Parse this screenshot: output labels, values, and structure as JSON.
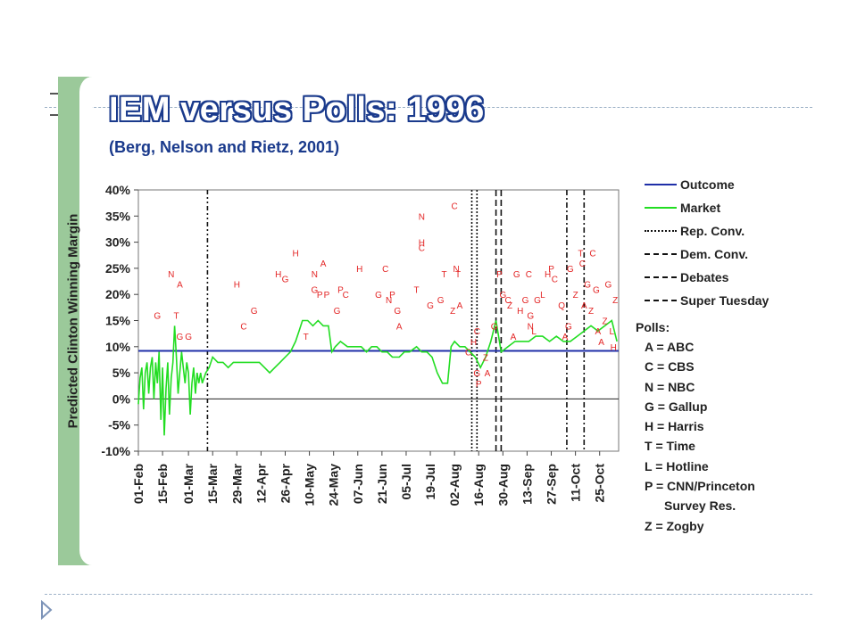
{
  "slide": {
    "title": "IEM versus Polls:  1996",
    "subtitle": "(Berg, Nelson and Rietz, 2001)",
    "ylabel": "Predicted Clinton Winning Margin"
  },
  "colors": {
    "outcome": "#1f2fa8",
    "market": "#22dd22",
    "polls": "#e32626",
    "title_outline": "#1a3a8c",
    "side_bar": "#9bc99a"
  },
  "chart_data": {
    "type": "line",
    "title": "IEM versus Polls:  1996",
    "subtitle": "(Berg, Nelson and Rietz, 2001)",
    "ylabel": "Predicted Clinton Winning Margin",
    "xlabel": "",
    "ylim": [
      -10,
      40
    ],
    "yticks": [
      -10,
      -5,
      0,
      5,
      10,
      15,
      20,
      25,
      30,
      35,
      40
    ],
    "ytick_labels": [
      "-10%",
      "-5%",
      "0%",
      "5%",
      "10%",
      "15%",
      "20%",
      "25%",
      "30%",
      "35%",
      "40%"
    ],
    "x_start": "1996-02-01",
    "x_end": "1996-11-05",
    "xticks": [
      "1996-02-01",
      "1996-02-15",
      "1996-03-01",
      "1996-03-15",
      "1996-03-29",
      "1996-04-12",
      "1996-04-26",
      "1996-05-10",
      "1996-05-24",
      "1996-06-07",
      "1996-06-21",
      "1996-07-05",
      "1996-07-19",
      "1996-08-02",
      "1996-08-16",
      "1996-08-30",
      "1996-09-13",
      "1996-09-27",
      "1996-10-11",
      "1996-10-25"
    ],
    "xtick_labels": [
      "01-Feb",
      "15-Feb",
      "01-Mar",
      "15-Mar",
      "29-Mar",
      "12-Apr",
      "26-Apr",
      "10-May",
      "24-May",
      "07-Jun",
      "21-Jun",
      "05-Jul",
      "19-Jul",
      "02-Aug",
      "16-Aug",
      "30-Aug",
      "13-Sep",
      "27-Sep",
      "11-Oct",
      "25-Oct"
    ],
    "legend": [
      {
        "label": "Outcome",
        "style": "solid-blue"
      },
      {
        "label": "Market",
        "style": "solid-green"
      },
      {
        "label": "Rep. Conv.",
        "style": "dotted"
      },
      {
        "label": "Dem. Conv.",
        "style": "long-dash"
      },
      {
        "label": "Debates",
        "style": "dash-dot"
      },
      {
        "label": "Super Tuesday",
        "style": "dash-dot-dot"
      }
    ],
    "legend_position": "right",
    "outcome": 9.2,
    "vlines": [
      {
        "name": "Super Tuesday",
        "date": "1996-03-12",
        "style": "dash-dot-dot"
      },
      {
        "name": "Rep. Conv.",
        "date": "1996-08-12",
        "style": "dotted"
      },
      {
        "name": "Rep. Conv.",
        "date": "1996-08-15",
        "style": "dotted"
      },
      {
        "name": "Dem. Conv.",
        "date": "1996-08-26",
        "style": "long-dash"
      },
      {
        "name": "Dem. Conv.",
        "date": "1996-08-29",
        "style": "long-dash"
      },
      {
        "name": "Debates",
        "date": "1996-10-06",
        "style": "dash-dot"
      },
      {
        "name": "Debates",
        "date": "1996-10-16",
        "style": "dash-dot"
      }
    ],
    "market": [
      [
        "1996-02-01",
        -1
      ],
      [
        "1996-02-02",
        4
      ],
      [
        "1996-02-03",
        6
      ],
      [
        "1996-02-04",
        -2
      ],
      [
        "1996-02-05",
        5
      ],
      [
        "1996-02-06",
        7
      ],
      [
        "1996-02-07",
        1
      ],
      [
        "1996-02-08",
        6
      ],
      [
        "1996-02-09",
        8
      ],
      [
        "1996-02-10",
        0
      ],
      [
        "1996-02-11",
        7
      ],
      [
        "1996-02-12",
        3
      ],
      [
        "1996-02-13",
        9
      ],
      [
        "1996-02-14",
        -4
      ],
      [
        "1996-02-15",
        6
      ],
      [
        "1996-02-16",
        -7
      ],
      [
        "1996-02-17",
        2
      ],
      [
        "1996-02-18",
        7
      ],
      [
        "1996-02-19",
        -3
      ],
      [
        "1996-02-20",
        4
      ],
      [
        "1996-02-21",
        7
      ],
      [
        "1996-02-22",
        14
      ],
      [
        "1996-02-23",
        8
      ],
      [
        "1996-02-24",
        1
      ],
      [
        "1996-02-25",
        5
      ],
      [
        "1996-02-26",
        9
      ],
      [
        "1996-02-27",
        6
      ],
      [
        "1996-02-28",
        3
      ],
      [
        "1996-02-29",
        7
      ],
      [
        "1996-03-01",
        5
      ],
      [
        "1996-03-02",
        -3
      ],
      [
        "1996-03-03",
        3
      ],
      [
        "1996-03-04",
        6
      ],
      [
        "1996-03-05",
        1
      ],
      [
        "1996-03-06",
        5
      ],
      [
        "1996-03-07",
        3
      ],
      [
        "1996-03-08",
        5
      ],
      [
        "1996-03-09",
        3
      ],
      [
        "1996-03-10",
        4
      ],
      [
        "1996-03-11",
        5
      ],
      [
        "1996-03-13",
        6
      ],
      [
        "1996-03-15",
        8
      ],
      [
        "1996-03-18",
        7
      ],
      [
        "1996-03-21",
        7
      ],
      [
        "1996-03-24",
        6
      ],
      [
        "1996-03-27",
        7
      ],
      [
        "1996-03-30",
        7
      ],
      [
        "1996-04-02",
        7
      ],
      [
        "1996-04-05",
        7
      ],
      [
        "1996-04-08",
        7
      ],
      [
        "1996-04-11",
        7
      ],
      [
        "1996-04-14",
        6
      ],
      [
        "1996-04-17",
        5
      ],
      [
        "1996-04-20",
        6
      ],
      [
        "1996-04-23",
        7
      ],
      [
        "1996-04-26",
        8
      ],
      [
        "1996-04-29",
        9
      ],
      [
        "1996-05-02",
        11
      ],
      [
        "1996-05-04",
        13
      ],
      [
        "1996-05-06",
        15
      ],
      [
        "1996-05-09",
        15
      ],
      [
        "1996-05-12",
        14
      ],
      [
        "1996-05-15",
        15
      ],
      [
        "1996-05-18",
        14
      ],
      [
        "1996-05-21",
        14
      ],
      [
        "1996-05-23",
        9
      ],
      [
        "1996-05-25",
        10
      ],
      [
        "1996-05-28",
        11
      ],
      [
        "1996-06-01",
        10
      ],
      [
        "1996-06-05",
        10
      ],
      [
        "1996-06-09",
        10
      ],
      [
        "1996-06-12",
        9
      ],
      [
        "1996-06-15",
        10
      ],
      [
        "1996-06-18",
        10
      ],
      [
        "1996-06-21",
        9
      ],
      [
        "1996-06-24",
        9
      ],
      [
        "1996-06-27",
        8
      ],
      [
        "1996-07-01",
        8
      ],
      [
        "1996-07-04",
        9
      ],
      [
        "1996-07-07",
        9
      ],
      [
        "1996-07-11",
        10
      ],
      [
        "1996-07-14",
        9
      ],
      [
        "1996-07-17",
        9
      ],
      [
        "1996-07-20",
        8
      ],
      [
        "1996-07-23",
        5
      ],
      [
        "1996-07-26",
        3
      ],
      [
        "1996-07-29",
        3
      ],
      [
        "1996-07-31",
        10
      ],
      [
        "1996-08-02",
        11
      ],
      [
        "1996-08-05",
        10
      ],
      [
        "1996-08-08",
        10
      ],
      [
        "1996-08-11",
        9
      ],
      [
        "1996-08-14",
        8
      ],
      [
        "1996-08-17",
        6
      ],
      [
        "1996-08-20",
        8
      ],
      [
        "1996-08-23",
        11
      ],
      [
        "1996-08-26",
        15
      ],
      [
        "1996-08-29",
        9
      ],
      [
        "1996-09-02",
        10
      ],
      [
        "1996-09-06",
        11
      ],
      [
        "1996-09-10",
        11
      ],
      [
        "1996-09-14",
        11
      ],
      [
        "1996-09-18",
        12
      ],
      [
        "1996-09-22",
        12
      ],
      [
        "1996-09-26",
        11
      ],
      [
        "1996-09-30",
        12
      ],
      [
        "1996-10-04",
        11
      ],
      [
        "1996-10-08",
        11
      ],
      [
        "1996-10-12",
        12
      ],
      [
        "1996-10-16",
        13
      ],
      [
        "1996-10-20",
        14
      ],
      [
        "1996-10-24",
        13
      ],
      [
        "1996-10-28",
        14
      ],
      [
        "1996-11-01",
        15
      ],
      [
        "1996-11-04",
        11
      ]
    ],
    "polls": [
      [
        "1996-02-12",
        16,
        "G"
      ],
      [
        "1996-02-20",
        24,
        "N"
      ],
      [
        "1996-02-23",
        16,
        "T"
      ],
      [
        "1996-02-25",
        22,
        "A"
      ],
      [
        "1996-02-25",
        12,
        "G"
      ],
      [
        "1996-03-01",
        12,
        "G"
      ],
      [
        "1996-03-29",
        22,
        "H"
      ],
      [
        "1996-04-02",
        14,
        "C"
      ],
      [
        "1996-04-08",
        17,
        "G"
      ],
      [
        "1996-04-22",
        24,
        "H"
      ],
      [
        "1996-04-26",
        23,
        "G"
      ],
      [
        "1996-05-02",
        28,
        "H"
      ],
      [
        "1996-05-08",
        12,
        "T"
      ],
      [
        "1996-05-13",
        24,
        "N"
      ],
      [
        "1996-05-13",
        21,
        "G"
      ],
      [
        "1996-05-16",
        20,
        "P"
      ],
      [
        "1996-05-18",
        26,
        "A"
      ],
      [
        "1996-05-20",
        20,
        "P"
      ],
      [
        "1996-05-26",
        17,
        "G"
      ],
      [
        "1996-05-28",
        21,
        "P"
      ],
      [
        "1996-05-31",
        20,
        "C"
      ],
      [
        "1996-06-08",
        25,
        "H"
      ],
      [
        "1996-06-19",
        20,
        "G"
      ],
      [
        "1996-06-23",
        25,
        "C"
      ],
      [
        "1996-06-25",
        19,
        "N"
      ],
      [
        "1996-06-27",
        20,
        "P"
      ],
      [
        "1996-06-30",
        17,
        "G"
      ],
      [
        "1996-07-01",
        14,
        "A"
      ],
      [
        "1996-07-11",
        21,
        "T"
      ],
      [
        "1996-07-14",
        35,
        "N"
      ],
      [
        "1996-07-14",
        30,
        "H"
      ],
      [
        "1996-07-14",
        29,
        "C"
      ],
      [
        "1996-07-19",
        18,
        "G"
      ],
      [
        "1996-07-25",
        19,
        "G"
      ],
      [
        "1996-07-27",
        24,
        "T"
      ],
      [
        "1996-08-02",
        37,
        "C"
      ],
      [
        "1996-08-03",
        25,
        "N"
      ],
      [
        "1996-08-04",
        24,
        "T"
      ],
      [
        "1996-08-01",
        17,
        "Z"
      ],
      [
        "1996-08-05",
        18,
        "A"
      ],
      [
        "1996-08-10",
        9,
        "C"
      ],
      [
        "1996-08-13",
        11,
        "H"
      ],
      [
        "1996-08-15",
        13,
        "C"
      ],
      [
        "1996-08-15",
        5,
        "G"
      ],
      [
        "1996-08-16",
        3,
        "P"
      ],
      [
        "1996-08-20",
        8,
        "Z"
      ],
      [
        "1996-08-21",
        5,
        "A"
      ],
      [
        "1996-08-25",
        14,
        "G"
      ],
      [
        "1996-08-28",
        24,
        "P"
      ],
      [
        "1996-08-30",
        20,
        "G"
      ],
      [
        "1996-09-02",
        19,
        "C"
      ],
      [
        "1996-09-03",
        18,
        "Z"
      ],
      [
        "1996-09-05",
        12,
        "A"
      ],
      [
        "1996-09-07",
        24,
        "G"
      ],
      [
        "1996-09-09",
        17,
        "H"
      ],
      [
        "1996-09-12",
        19,
        "G"
      ],
      [
        "1996-09-14",
        24,
        "C"
      ],
      [
        "1996-09-15",
        16,
        "G"
      ],
      [
        "1996-09-15",
        14,
        "N"
      ],
      [
        "1996-09-17",
        13,
        "L"
      ],
      [
        "1996-09-19",
        19,
        "G"
      ],
      [
        "1996-09-22",
        20,
        "L"
      ],
      [
        "1996-09-25",
        24,
        "H"
      ],
      [
        "1996-09-27",
        25,
        "P"
      ],
      [
        "1996-09-29",
        23,
        "C"
      ],
      [
        "1996-10-03",
        18,
        "Q"
      ],
      [
        "1996-10-05",
        12,
        "A"
      ],
      [
        "1996-10-07",
        14,
        "G"
      ],
      [
        "1996-10-08",
        25,
        "G"
      ],
      [
        "1996-10-11",
        20,
        "Z"
      ],
      [
        "1996-10-14",
        28,
        "T"
      ],
      [
        "1996-10-15",
        26,
        "C"
      ],
      [
        "1996-10-16",
        18,
        "A"
      ],
      [
        "1996-10-18",
        22,
        "G"
      ],
      [
        "1996-10-20",
        17,
        "Z"
      ],
      [
        "1996-10-21",
        28,
        "C"
      ],
      [
        "1996-10-23",
        21,
        "G"
      ],
      [
        "1996-10-24",
        13,
        "A"
      ],
      [
        "1996-10-26",
        11,
        "A"
      ],
      [
        "1996-10-28",
        15,
        "Z"
      ],
      [
        "1996-10-30",
        22,
        "G"
      ],
      [
        "1996-11-01",
        13,
        "L"
      ],
      [
        "1996-11-02",
        10,
        "H"
      ],
      [
        "1996-11-03",
        19,
        "Z"
      ]
    ]
  },
  "polls_key": {
    "heading": "Polls:",
    "items": [
      "A = ABC",
      "C = CBS",
      "N = NBC",
      "G = Gallup",
      "H = Harris",
      "T = Time",
      "L = Hotline",
      "P = CNN/Princeton",
      "Survey Res.",
      "Z = Zogby"
    ]
  }
}
